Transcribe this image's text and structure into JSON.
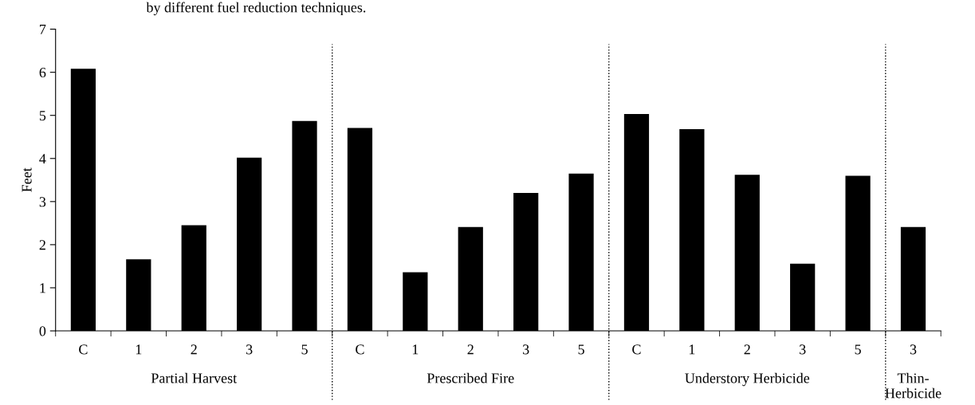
{
  "chart_data": {
    "type": "bar",
    "title": "by different fuel reduction techniques.",
    "ylabel": "Feet",
    "categories": [
      "C",
      "1",
      "2",
      "3",
      "5",
      "C",
      "1",
      "2",
      "3",
      "5",
      "C",
      "1",
      "2",
      "3",
      "5",
      "3"
    ],
    "values": [
      6.08,
      1.66,
      2.45,
      4.02,
      4.87,
      4.71,
      1.36,
      2.41,
      3.2,
      3.65,
      5.03,
      4.68,
      3.62,
      1.56,
      3.6,
      2.41
    ],
    "color": "#000000",
    "ylim": [
      0,
      7
    ],
    "yticks": [
      0,
      1,
      2,
      3,
      4,
      5,
      6,
      7
    ],
    "grid": false,
    "annotations": [
      "Partial Harvest",
      "Prescribed Fire",
      "Understory Herbicide",
      "Thin-\nHerbicide"
    ]
  }
}
